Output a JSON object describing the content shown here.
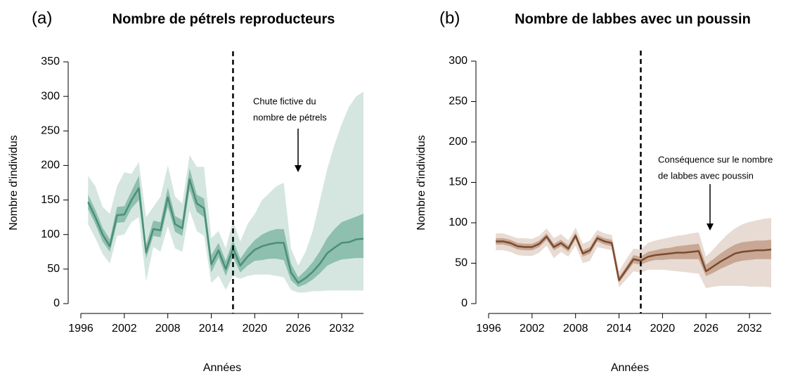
{
  "chart_data": [
    {
      "type": "line",
      "panel": "(a)",
      "title": "Nombre de pétrels reproducteurs",
      "xlabel": "Années",
      "ylabel": "Nombre d'individus",
      "xlim": [
        1996,
        2035
      ],
      "ylim": [
        0,
        350
      ],
      "xticks": [
        1996,
        2002,
        2008,
        2014,
        2020,
        2026,
        2032
      ],
      "yticks": [
        0,
        50,
        100,
        150,
        200,
        250,
        300,
        350
      ],
      "vline": 2017,
      "annotation": [
        "Chute fictive du",
        "nombre de pétrels"
      ],
      "x": [
        1997,
        1998,
        1999,
        2000,
        2001,
        2002,
        2003,
        2004,
        2005,
        2006,
        2007,
        2008,
        2009,
        2010,
        2011,
        2012,
        2013,
        2014,
        2015,
        2016,
        2017,
        2018,
        2019,
        2020,
        2021,
        2022,
        2023,
        2024,
        2025,
        2026,
        2027,
        2028,
        2029,
        2030,
        2031,
        2032,
        2033,
        2034,
        2035
      ],
      "series": [
        {
          "color": "#4a8f78",
          "values": [
            147,
            125,
            100,
            83,
            128,
            129,
            150,
            167,
            74,
            108,
            106,
            154,
            115,
            109,
            180,
            145,
            138,
            57,
            77,
            50,
            80,
            55,
            68,
            78,
            83,
            86,
            88,
            88,
            45,
            30,
            37,
            46,
            58,
            73,
            81,
            88,
            89,
            93,
            94
          ]
        }
      ],
      "bands": [
        {
          "color": "#d5e6e1",
          "lower": [
            115,
            95,
            72,
            58,
            98,
            100,
            118,
            125,
            32,
            82,
            75,
            112,
            80,
            75,
            135,
            105,
            98,
            30,
            40,
            20,
            40,
            36,
            40,
            42,
            42,
            42,
            40,
            38,
            20,
            16,
            16,
            18,
            18,
            19,
            19,
            19,
            19,
            19,
            19
          ],
          "upper": [
            185,
            170,
            140,
            130,
            170,
            190,
            188,
            205,
            125,
            140,
            155,
            200,
            155,
            145,
            215,
            198,
            198,
            95,
            105,
            80,
            120,
            90,
            115,
            130,
            150,
            160,
            170,
            175,
            80,
            55,
            75,
            105,
            150,
            195,
            230,
            260,
            285,
            300,
            307
          ]
        },
        {
          "color": "#8fbfae",
          "lower": [
            137,
            115,
            90,
            75,
            117,
            118,
            138,
            150,
            65,
            98,
            96,
            140,
            104,
            98,
            165,
            133,
            125,
            45,
            67,
            40,
            68,
            45,
            55,
            62,
            63,
            65,
            65,
            63,
            34,
            24,
            28,
            35,
            44,
            55,
            60,
            64,
            65,
            66,
            66
          ],
          "upper": [
            158,
            136,
            110,
            93,
            140,
            141,
            163,
            185,
            85,
            120,
            118,
            168,
            127,
            121,
            196,
            158,
            152,
            70,
            88,
            62,
            92,
            65,
            80,
            92,
            100,
            105,
            108,
            108,
            58,
            38,
            48,
            60,
            76,
            95,
            108,
            118,
            122,
            126,
            130
          ]
        }
      ]
    },
    {
      "type": "line",
      "panel": "(b)",
      "title": "Nombre de labbes avec un poussin",
      "xlabel": "Années",
      "ylabel": "Nombre d'individus",
      "xlim": [
        1996,
        2035
      ],
      "ylim": [
        0,
        300
      ],
      "xticks": [
        1996,
        2002,
        2008,
        2014,
        2020,
        2026,
        2032
      ],
      "yticks": [
        0,
        50,
        100,
        150,
        200,
        250,
        300
      ],
      "vline": 2017,
      "annotation": [
        "Conséquence sur le nombre",
        "de labbes avec poussin"
      ],
      "x": [
        1997,
        1998,
        1999,
        2000,
        2001,
        2002,
        2003,
        2004,
        2005,
        2006,
        2007,
        2008,
        2009,
        2010,
        2011,
        2012,
        2013,
        2014,
        2015,
        2016,
        2017,
        2018,
        2019,
        2020,
        2021,
        2022,
        2023,
        2024,
        2025,
        2026,
        2027,
        2028,
        2029,
        2030,
        2031,
        2032,
        2033,
        2034,
        2035
      ],
      "series": [
        {
          "color": "#7a4a2e",
          "values": [
            77,
            77,
            75,
            71,
            70,
            70,
            74,
            83,
            70,
            75,
            68,
            84,
            62,
            66,
            81,
            77,
            75,
            29,
            42,
            55,
            53,
            58,
            60,
            61,
            62,
            63,
            63,
            64,
            65,
            40,
            46,
            52,
            57,
            62,
            64,
            65,
            66,
            66,
            67
          ]
        }
      ],
      "bands": [
        {
          "color": "#e8dbd3",
          "lower": [
            66,
            66,
            64,
            60,
            59,
            59,
            63,
            72,
            56,
            64,
            58,
            72,
            50,
            53,
            70,
            68,
            66,
            20,
            30,
            40,
            38,
            42,
            42,
            42,
            41,
            40,
            39,
            38,
            37,
            19,
            21,
            22,
            22,
            22,
            22,
            21,
            21,
            21,
            20
          ],
          "upper": [
            87,
            87,
            84,
            81,
            81,
            80,
            84,
            93,
            81,
            86,
            78,
            94,
            74,
            78,
            91,
            87,
            85,
            40,
            55,
            68,
            67,
            75,
            78,
            80,
            82,
            84,
            85,
            87,
            88,
            58,
            67,
            77,
            86,
            93,
            98,
            101,
            103,
            105,
            106
          ]
        },
        {
          "color": "#c8a894",
          "lower": [
            73,
            73,
            71,
            67,
            66,
            66,
            70,
            79,
            66,
            71,
            64,
            80,
            58,
            62,
            77,
            73,
            71,
            26,
            38,
            50,
            48,
            52,
            54,
            54,
            55,
            55,
            55,
            55,
            55,
            34,
            38,
            43,
            47,
            51,
            53,
            54,
            55,
            55,
            55
          ],
          "upper": [
            81,
            81,
            79,
            75,
            74,
            74,
            78,
            87,
            74,
            79,
            72,
            88,
            66,
            70,
            85,
            81,
            79,
            33,
            46,
            60,
            58,
            64,
            66,
            68,
            69,
            71,
            72,
            73,
            74,
            48,
            55,
            62,
            68,
            73,
            76,
            77,
            78,
            78,
            79
          ]
        }
      ]
    }
  ]
}
